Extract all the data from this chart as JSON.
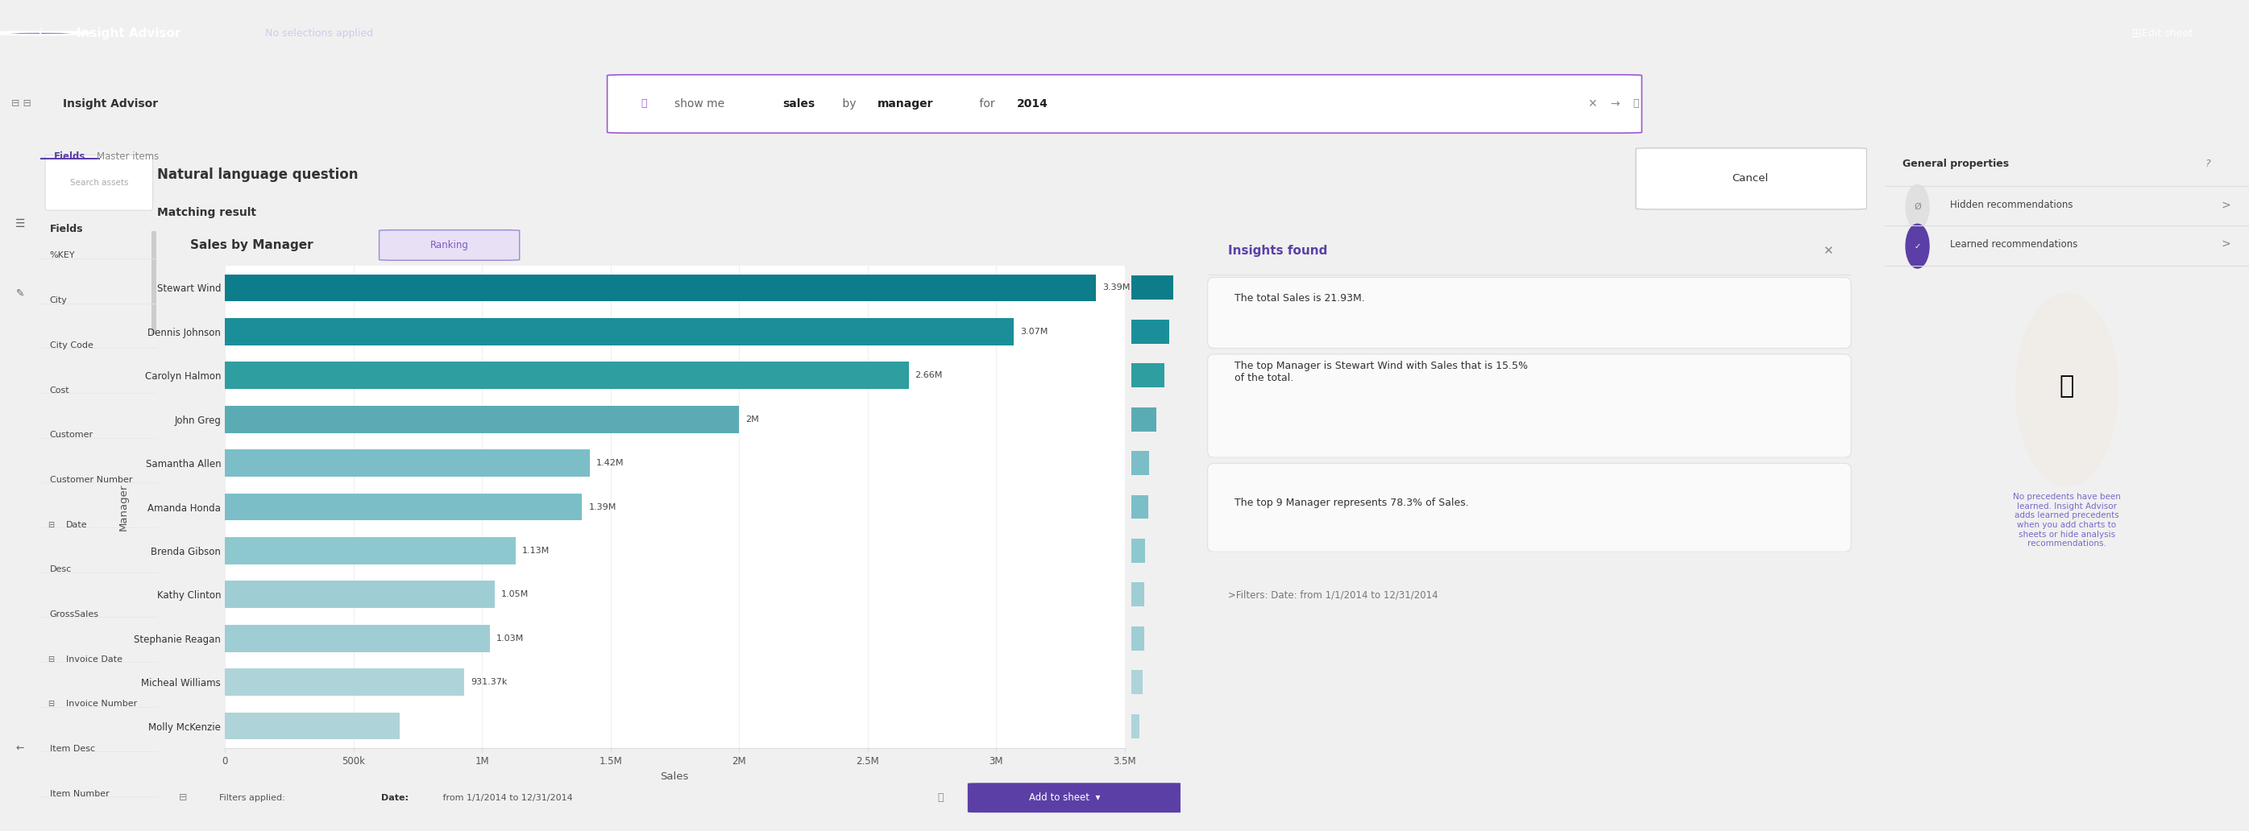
{
  "title": "Sales by Manager",
  "ranking_label": "Ranking",
  "managers": [
    "Stewart Wind",
    "Dennis Johnson",
    "Carolyn Halmon",
    "John Greg",
    "Samantha Allen",
    "Amanda Honda",
    "Brenda Gibson",
    "Kathy Clinton",
    "Stephanie Reagan",
    "Micheal Williams",
    "Molly McKenzie"
  ],
  "sales": [
    3390000,
    3070000,
    2660000,
    2000000,
    1420000,
    1390000,
    1130000,
    1050000,
    1030000,
    931370,
    680000
  ],
  "bar_labels": [
    "3.39M",
    "3.07M",
    "2.66M",
    "2M",
    "1.42M",
    "1.39M",
    "1.13M",
    "1.05M",
    "1.03M",
    "931.37k",
    ""
  ],
  "bar_colors": [
    "#0d7d8c",
    "#1a8f9a",
    "#2e9ea0",
    "#5babb5",
    "#7bbec7",
    "#7bbec7",
    "#8ec8cf",
    "#9fcdd4",
    "#9fcdd4",
    "#aed4da",
    "#aed4da"
  ],
  "xlabel": "Sales",
  "ylabel": "Manager",
  "xlim": [
    0,
    3500000
  ],
  "xtick_labels": [
    "0",
    "500k",
    "1M",
    "1.5M",
    "2M",
    "2.5M",
    "3M",
    "3.5M"
  ],
  "xtick_values": [
    0,
    500000,
    1000000,
    1500000,
    2000000,
    2500000,
    3000000,
    3500000
  ],
  "chart_bg": "#ffffff",
  "page_bg": "#f0f0f0",
  "insights_title": "Insights found",
  "insights": [
    "The total Sales is 21.93M.",
    "The top Manager is Stewart Wind with Sales that is 15.5%\nof the total.",
    "The top 9 Manager represents 78.3% of Sales."
  ],
  "filter_text": ">Filters: Date: from 1/1/2014 to 12/31/2014",
  "nlq_header": "Natural language question",
  "matching_result": "Matching result",
  "cancel_btn": "Cancel",
  "add_to_sheet": "Add to sheet",
  "sidebar_items": [
    "%KEY",
    "City",
    "City Code",
    "Cost",
    "Customer",
    "Customer Number",
    "Date",
    "Desc",
    "GrossSales",
    "Invoice Date",
    "Invoice Number",
    "Item Desc",
    "Item Number"
  ],
  "sidebar_title": "Fields",
  "right_panel_title": "General properties",
  "right_panel_items": [
    "Hidden recommendations",
    "Learned recommendations"
  ],
  "main_bg": "#f0f0f0",
  "panel_bg": "#ffffff",
  "sidebar_bg": "#f8f8f8",
  "header_bg": "#ffffff",
  "top_nav_bg": "#5b3fa6",
  "top_nav_text": "#ffffff"
}
